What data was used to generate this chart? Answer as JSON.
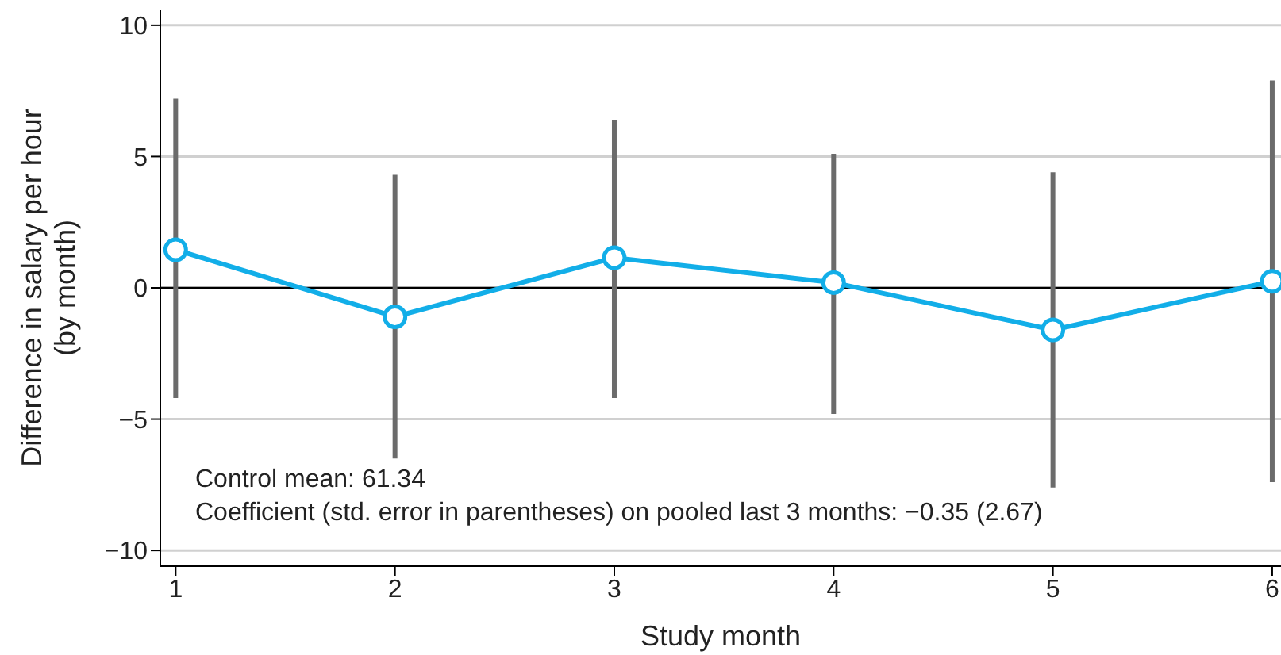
{
  "chart_data": {
    "type": "line",
    "xlabel": "Study month",
    "ylabel": "Difference in salary per hour\n(by month)",
    "x": [
      1,
      2,
      3,
      4,
      5,
      6
    ],
    "series": [
      {
        "color": "#12aee8",
        "values": [
          1.45,
          -1.1,
          1.15,
          0.2,
          -1.6,
          0.25
        ],
        "errors": [
          [
            -4.2,
            7.2
          ],
          [
            -6.5,
            4.3
          ],
          [
            -4.2,
            6.4
          ],
          [
            -4.8,
            5.1
          ],
          [
            -7.6,
            4.4
          ],
          [
            -7.4,
            7.9
          ]
        ]
      }
    ],
    "xlim": [
      0.93,
      6.04
    ],
    "xticks": [
      1,
      2,
      3,
      4,
      5,
      6
    ],
    "ylim": [
      -10.6,
      10.6
    ],
    "yticks": [
      {
        "value": -10,
        "label": "−10"
      },
      {
        "value": -5,
        "label": "−5"
      },
      0,
      5,
      10
    ],
    "grid": "y",
    "marker": "circle",
    "line_style": "solid",
    "ref_lines": [
      {
        "axis": "y",
        "value": 0,
        "color": "#000000"
      }
    ],
    "annotations": [
      "Control mean: 61.34",
      "Coefficient (std. error in parentheses) on pooled last 3 months: −0.35 (2.67)"
    ]
  }
}
